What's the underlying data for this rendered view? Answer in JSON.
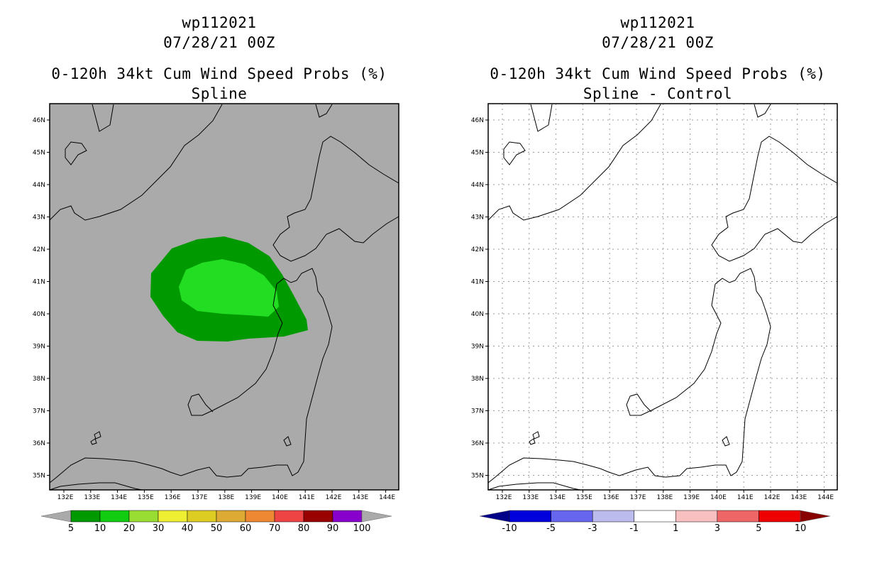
{
  "left_panel": {
    "title_storm": "wp112021",
    "title_time": "07/28/21 00Z",
    "title_product": "0-120h 34kt Cum Wind Speed Probs (%)",
    "title_sub": "Spline",
    "lat_labels": [
      "46N",
      "45N",
      "44N",
      "43N",
      "42N",
      "41N",
      "40N",
      "39N",
      "38N",
      "37N",
      "36N",
      "35N"
    ],
    "lon_labels": [
      "132E",
      "133E",
      "134E",
      "135E",
      "136E",
      "137E",
      "138E",
      "139E",
      "140E",
      "141E",
      "142E",
      "143E",
      "144E"
    ],
    "colorbar": {
      "labels": [
        "5",
        "10",
        "20",
        "30",
        "40",
        "50",
        "60",
        "70",
        "80",
        "90",
        "100"
      ],
      "colors": [
        "#009900",
        "#11cc11",
        "#99dd33",
        "#eeee33",
        "#ddcc22",
        "#ddaa33",
        "#ee8833",
        "#ee4444",
        "#990000",
        "#8800cc"
      ],
      "under_color": "#aaaaaa",
      "over_color": "#aaaaaa"
    },
    "background_color": "#aaaaaa"
  },
  "right_panel": {
    "title_storm": "wp112021",
    "title_time": "07/28/21 00Z",
    "title_product": "0-120h 34kt Cum Wind Speed Probs (%)",
    "title_sub": "Spline - Control",
    "lat_labels": [
      "46N",
      "45N",
      "44N",
      "43N",
      "42N",
      "41N",
      "40N",
      "39N",
      "38N",
      "37N",
      "36N",
      "35N"
    ],
    "lon_labels": [
      "132E",
      "133E",
      "134E",
      "135E",
      "136E",
      "137E",
      "138E",
      "139E",
      "140E",
      "141E",
      "142E",
      "143E",
      "144E"
    ],
    "colorbar": {
      "labels": [
        "-10",
        "-5",
        "-3",
        "-1",
        "1",
        "3",
        "5",
        "10"
      ],
      "colors": [
        "#0000dd",
        "#6666ee",
        "#bbbbee",
        "#ffffff",
        "#f8c0c0",
        "#ee6666",
        "#ee0000"
      ],
      "under_color": "#000088",
      "over_color": "#880000"
    },
    "background_color": "#ffffff"
  }
}
